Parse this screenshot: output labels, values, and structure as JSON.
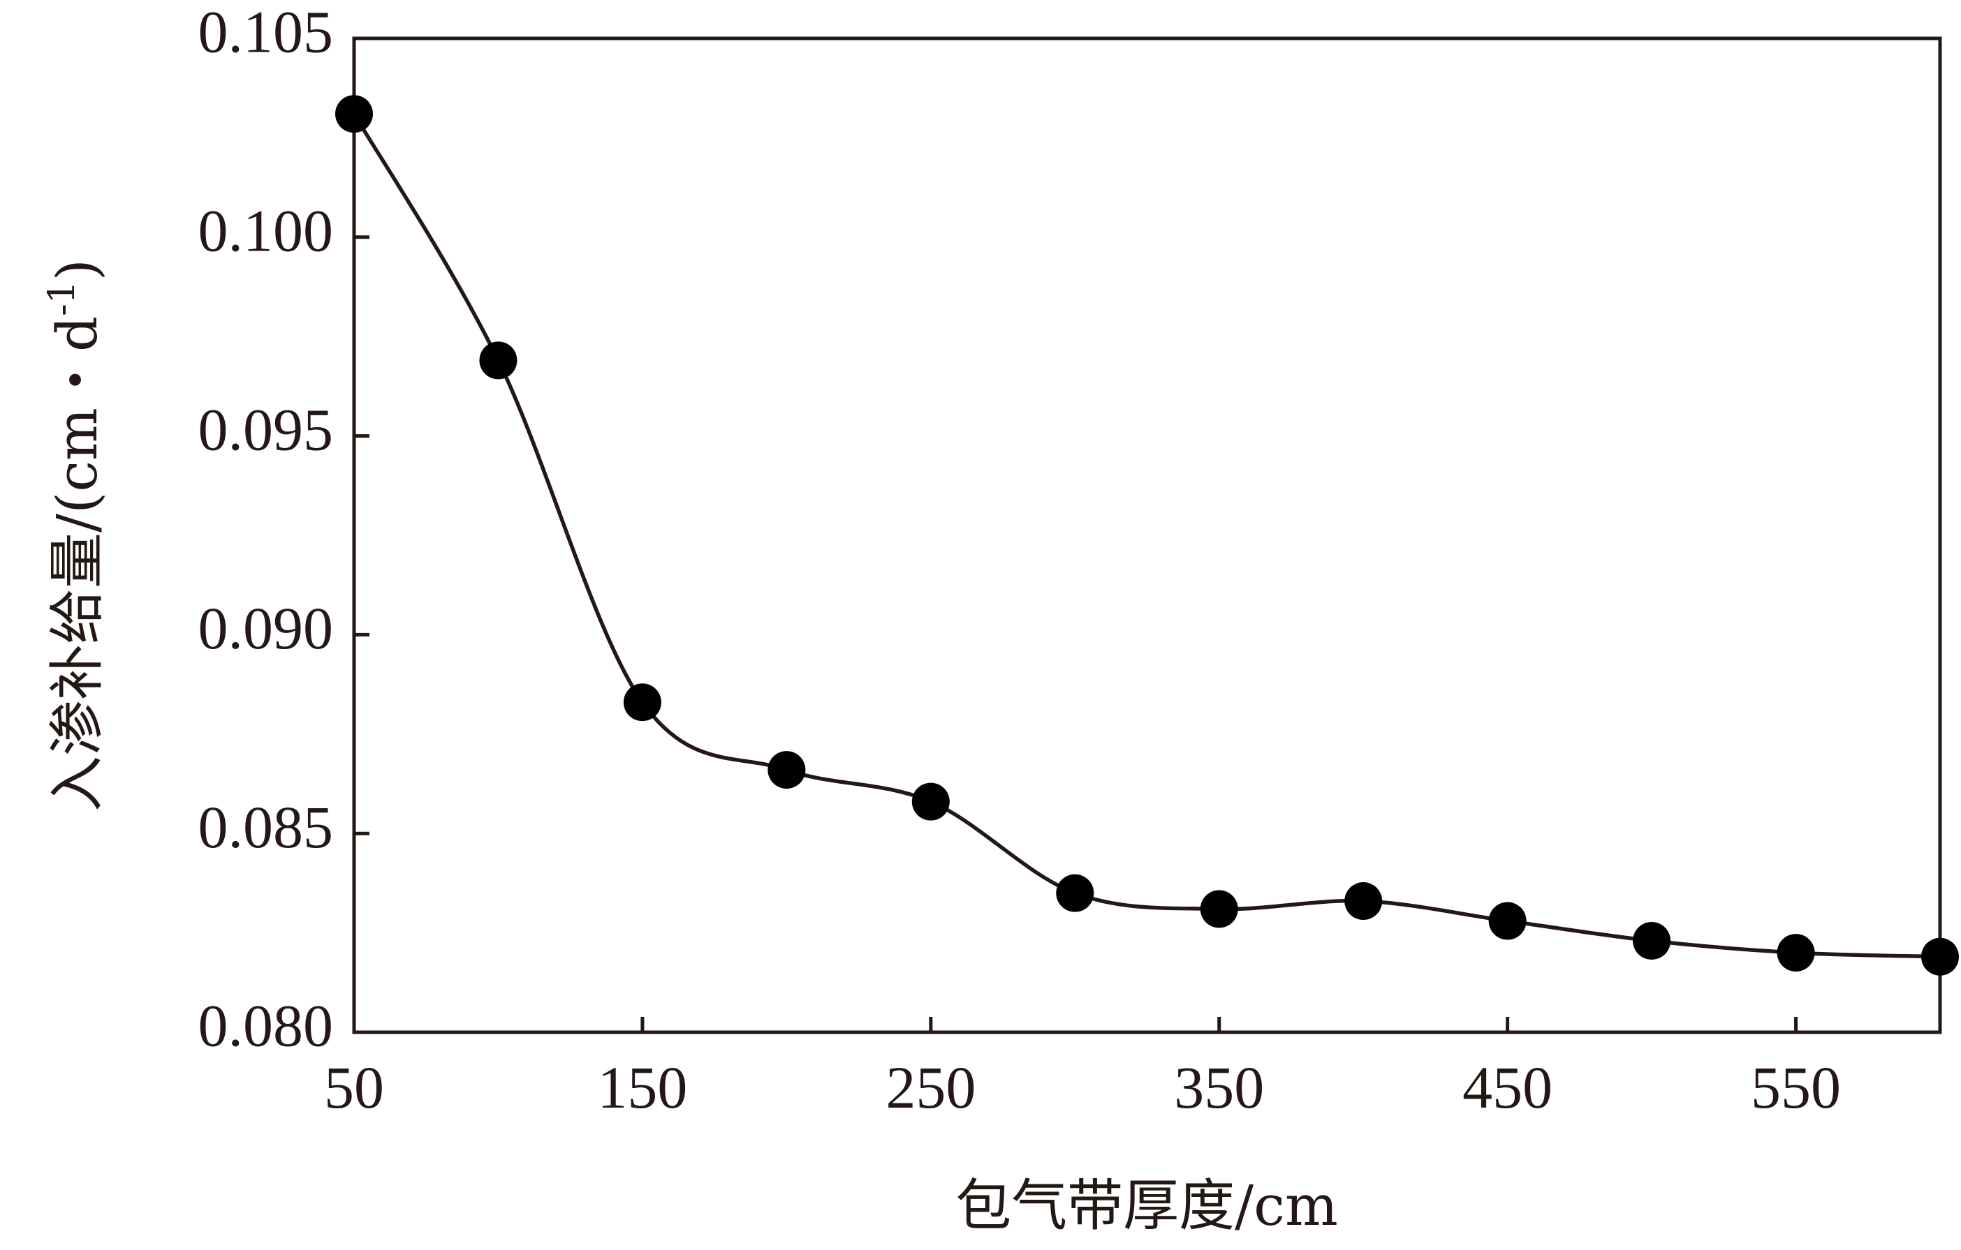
{
  "chart_data": {
    "type": "line",
    "x": [
      50,
      100,
      150,
      200,
      250,
      300,
      350,
      400,
      450,
      500,
      550,
      600
    ],
    "series": [
      {
        "values": [
          0.1031,
          0.0969,
          0.0883,
          0.0866,
          0.0858,
          0.0835,
          0.0831,
          0.0833,
          0.0828,
          0.0823,
          0.082,
          0.0819
        ]
      }
    ],
    "xlabel": "包气带厚度/cm",
    "ylabel": "入渗补给量/(cm・d",
    "ylabel_sup": "-1",
    "ylabel_close": ")",
    "xlim": [
      50,
      600
    ],
    "ylim": [
      0.08,
      0.105
    ],
    "xticks": [
      50,
      150,
      250,
      350,
      450,
      550
    ],
    "xtick_labels": [
      "50",
      "150",
      "250",
      "350",
      "450",
      "550"
    ],
    "yticks": [
      0.08,
      0.085,
      0.09,
      0.095,
      0.1,
      0.105
    ],
    "ytick_labels": [
      "0.080",
      "0.085",
      "0.090",
      "0.095",
      "0.100",
      "0.105"
    ],
    "grid": false,
    "legend": "none",
    "line_color": "#231815",
    "marker": "filled-circle"
  }
}
